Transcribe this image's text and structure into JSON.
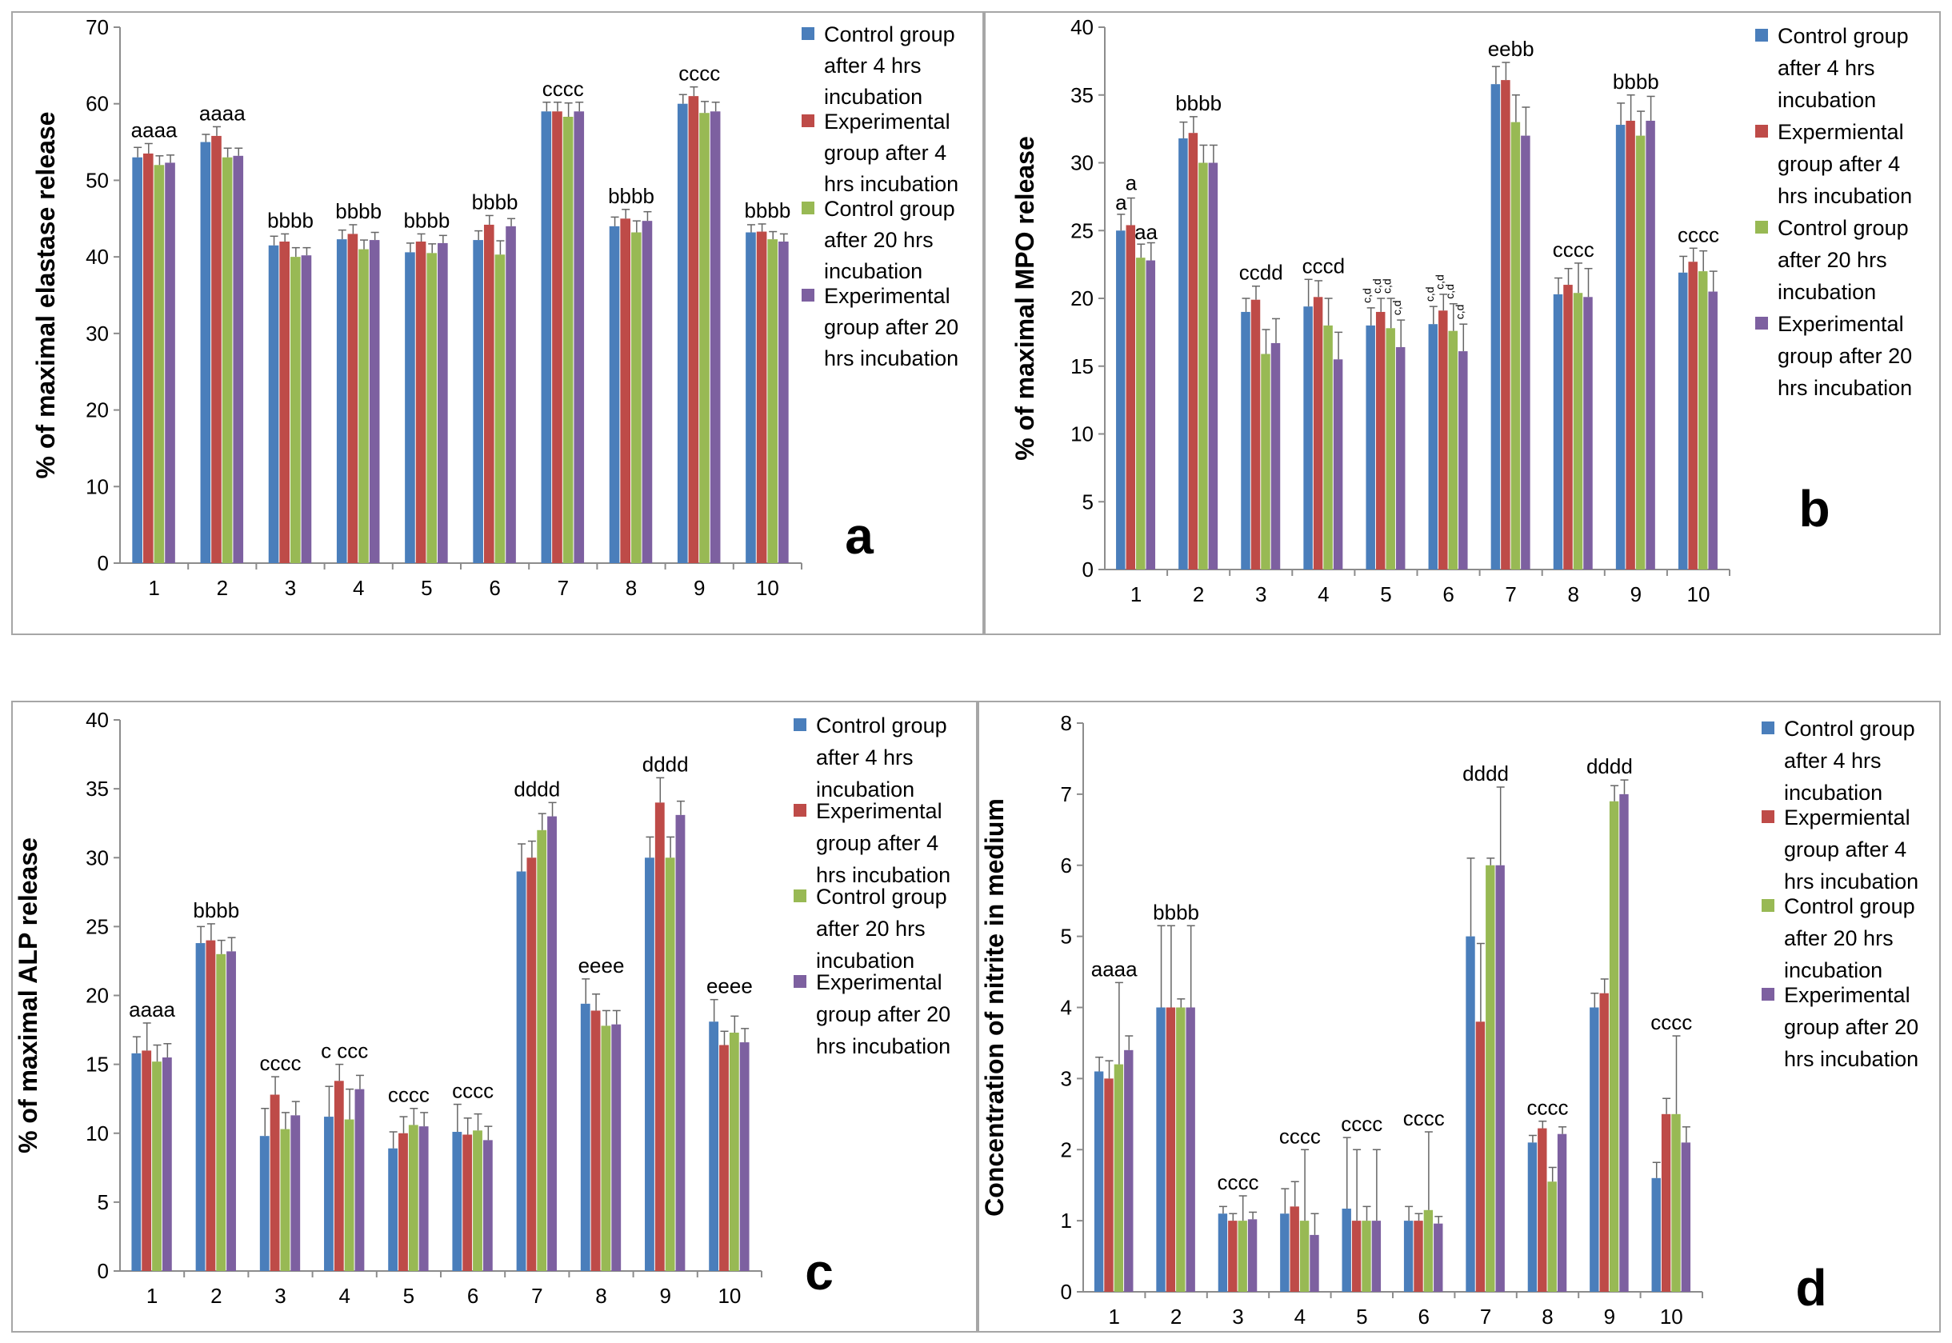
{
  "colors": {
    "s1": "#4a7ebb",
    "s2": "#be4b48",
    "s3": "#98b954",
    "s4": "#7d60a0",
    "axis": "#8c8c8c",
    "err": "#666666"
  },
  "chart_data": [
    {
      "id": "a",
      "type": "bar",
      "panel_letter": "a",
      "ylabel": "% of maximal elastase release",
      "xlabel": "",
      "ylim": [
        0,
        70
      ],
      "ytick_step": 10,
      "categories": [
        "1",
        "2",
        "3",
        "4",
        "5",
        "6",
        "7",
        "8",
        "9",
        "10"
      ],
      "legend": [
        "Control group after 4 hrs incubation",
        "Experimental group after 4 hrs incubation",
        "Control group after 20 hrs incubation",
        "Experimental group after 20 hrs incubation"
      ],
      "series": [
        {
          "name": "Control group after 4 hrs incubation",
          "values": [
            53,
            55,
            41.5,
            42.3,
            40.6,
            42.2,
            59,
            44,
            60,
            43.2
          ],
          "err": [
            1.3,
            1,
            1.2,
            1.2,
            1.2,
            1.2,
            1.2,
            1.2,
            1.2,
            1
          ]
        },
        {
          "name": "Experimental group after 4 hrs incubation",
          "values": [
            53.5,
            55.8,
            42,
            43,
            42,
            44.2,
            59,
            45,
            61,
            43.3
          ],
          "err": [
            1.3,
            1.2,
            1,
            1.2,
            1,
            1.2,
            1.2,
            1.2,
            1.2,
            1
          ]
        },
        {
          "name": "Control group after 20 hrs incubation",
          "values": [
            52,
            53,
            40,
            41,
            40.5,
            40.3,
            58.3,
            43.2,
            58.8,
            42.3
          ],
          "err": [
            1.2,
            1.2,
            1.2,
            1.2,
            1.2,
            1.8,
            1.8,
            1.5,
            1.5,
            1
          ]
        },
        {
          "name": "Experimental group after 20 hrs incubation",
          "values": [
            52.3,
            53.2,
            40.2,
            42.2,
            41.8,
            44,
            59,
            44.7,
            59,
            42
          ],
          "err": [
            1,
            1,
            1,
            1,
            1,
            1,
            1.2,
            1.2,
            1.2,
            1
          ]
        }
      ],
      "annotations": [
        "aaaa",
        "aaaa",
        "bbbb",
        "bbbb",
        "bbbb",
        "bbbb",
        "cccc",
        "bbbb",
        "cccc",
        "bbbb"
      ]
    },
    {
      "id": "b",
      "type": "bar",
      "panel_letter": "b",
      "ylabel": "% of maximal MPO release",
      "xlabel": "",
      "ylim": [
        0,
        40
      ],
      "ytick_step": 5,
      "categories": [
        "1",
        "2",
        "3",
        "4",
        "5",
        "6",
        "7",
        "8",
        "9",
        "10"
      ],
      "legend": [
        "Control group after 4 hrs incubation",
        "Expermiental group after 4 hrs incubation",
        "Control group after 20 hrs incubation",
        "Experimental group after 20 hrs incubation"
      ],
      "series": [
        {
          "name": "Control group after 4 hrs incubation",
          "values": [
            25,
            31.8,
            19,
            19.4,
            18,
            18.1,
            35.8,
            20.3,
            32.8,
            21.9
          ],
          "err": [
            1.2,
            1.2,
            1,
            2,
            1.3,
            1.3,
            1.3,
            1.2,
            1.6,
            1.2
          ]
        },
        {
          "name": "Expermiental group after 4 hrs incubation",
          "values": [
            25.4,
            32.2,
            19.9,
            20.1,
            19,
            19.1,
            36.1,
            21,
            33.1,
            22.7
          ],
          "err": [
            2,
            1.2,
            1,
            1.2,
            1,
            1.2,
            1.3,
            1.2,
            1.9,
            1
          ]
        },
        {
          "name": "Control group after 20 hrs incubation",
          "values": [
            23,
            30,
            15.9,
            18,
            17.8,
            17.6,
            33,
            20.4,
            32,
            22
          ],
          "err": [
            1,
            1.3,
            1.8,
            2,
            2.2,
            2,
            2,
            2.2,
            1.8,
            1.5
          ]
        },
        {
          "name": "Experimental group after 20 hrs incubation",
          "values": [
            22.8,
            30,
            16.7,
            15.5,
            16.4,
            16.1,
            32,
            20.1,
            33.1,
            20.5
          ],
          "err": [
            1.3,
            1.3,
            1.8,
            2,
            2,
            2,
            2.1,
            2.1,
            1.8,
            1.5
          ]
        }
      ],
      "annotations": [
        "",
        "bbbb",
        "ccdd",
        "cccd",
        "",
        "",
        "eebb",
        "cccc",
        "bbbb",
        "cccc"
      ],
      "group1_annotations": [
        "a",
        "a",
        "aa"
      ],
      "small_annotations": [
        "c,d",
        "c,d",
        "c,d",
        "c,d",
        "c,d",
        "c,d",
        "c,d",
        "c,d"
      ]
    },
    {
      "id": "c",
      "type": "bar",
      "panel_letter": "c",
      "ylabel": "% of maximal ALP release",
      "xlabel": "",
      "ylim": [
        0,
        40
      ],
      "ytick_step": 5,
      "categories": [
        "1",
        "2",
        "3",
        "4",
        "5",
        "6",
        "7",
        "8",
        "9",
        "10"
      ],
      "legend": [
        "Control group after 4 hrs incubation",
        "Experimental group after 4 hrs incubation",
        "Control group after 20 hrs incubation",
        "Experimental group after 20 hrs incubation"
      ],
      "series": [
        {
          "name": "Control group after 4 hrs incubation",
          "values": [
            15.8,
            23.8,
            9.8,
            11.2,
            8.9,
            10.1,
            29,
            19.4,
            30,
            18.1
          ],
          "err": [
            1.2,
            1.2,
            2,
            2.2,
            1.2,
            2,
            2,
            1.8,
            1.5,
            1.6
          ]
        },
        {
          "name": "Experimental group after 4 hrs incubation",
          "values": [
            16,
            24,
            12.8,
            13.8,
            10,
            9.9,
            30,
            18.9,
            34,
            16.4
          ],
          "err": [
            2,
            1.2,
            1.3,
            1.2,
            1.2,
            1.2,
            1.2,
            1.2,
            1.8,
            1
          ]
        },
        {
          "name": "Control group after 20 hrs incubation",
          "values": [
            15.2,
            23,
            10.3,
            11,
            10.6,
            10.2,
            32,
            17.8,
            30,
            17.3
          ],
          "err": [
            1.2,
            1,
            1.2,
            2.2,
            1.2,
            1.2,
            1.2,
            1.1,
            1.5,
            1.2
          ]
        },
        {
          "name": "Experimental group after 20 hrs incubation",
          "values": [
            15.5,
            23.2,
            11.3,
            13.2,
            10.5,
            9.5,
            33,
            17.9,
            33.1,
            16.6
          ],
          "err": [
            1,
            1,
            1,
            1,
            1,
            1,
            1,
            1,
            1,
            1
          ]
        }
      ],
      "annotations": [
        "aaaa",
        "bbbb",
        "cccc",
        "c ccc",
        "cccc",
        "cccc",
        "dddd",
        "eeee",
        "dddd",
        "eeee"
      ]
    },
    {
      "id": "d",
      "type": "bar",
      "panel_letter": "d",
      "ylabel": "Concentration of nitrite in medium",
      "xlabel": "",
      "ylim": [
        0,
        8
      ],
      "ytick_step": 1,
      "categories": [
        "1",
        "2",
        "3",
        "4",
        "5",
        "6",
        "7",
        "8",
        "9",
        "10"
      ],
      "legend": [
        "Control group after 4 hrs incubation",
        "Expermiental group after 4 hrs incubation",
        "Control group after 20 hrs incubation",
        "Experimental group after 20 hrs incubation"
      ],
      "series": [
        {
          "name": "Control group after 4 hrs incubation",
          "values": [
            3.1,
            4,
            1.1,
            1.1,
            1.17,
            1,
            5,
            2.1,
            4,
            1.6
          ],
          "err": [
            0.2,
            1.15,
            0.1,
            0.35,
            1,
            0.2,
            1.1,
            0.1,
            0.2,
            0.22
          ]
        },
        {
          "name": "Expermiental group after 4 hrs incubation",
          "values": [
            3,
            4,
            1,
            1.2,
            1,
            1,
            3.8,
            2.3,
            4.2,
            2.5
          ],
          "err": [
            0.25,
            1.15,
            0.1,
            0.35,
            1,
            0.1,
            1.1,
            0.1,
            0.2,
            0.22
          ]
        },
        {
          "name": "Control group after 20 hrs incubation",
          "values": [
            3.2,
            4,
            1,
            1,
            1,
            1.15,
            6,
            1.55,
            6.9,
            2.5
          ],
          "err": [
            1.15,
            0.12,
            0.35,
            1,
            0.2,
            1.1,
            0.1,
            0.2,
            0.22,
            1.1
          ]
        },
        {
          "name": "Experimental group after 20 hrs incubation",
          "values": [
            3.4,
            4,
            1.02,
            0.8,
            1,
            0.96,
            6,
            2.22,
            7,
            2.1
          ],
          "err": [
            0.2,
            1.15,
            0.1,
            0.3,
            1,
            0.1,
            1.1,
            0.1,
            0.2,
            0.22
          ]
        }
      ],
      "annotations": [
        "aaaa",
        "bbbb",
        "cccc",
        "cccc",
        "cccc",
        "cccc",
        "dddd",
        "cccc",
        "dddd",
        "cccc"
      ]
    }
  ]
}
